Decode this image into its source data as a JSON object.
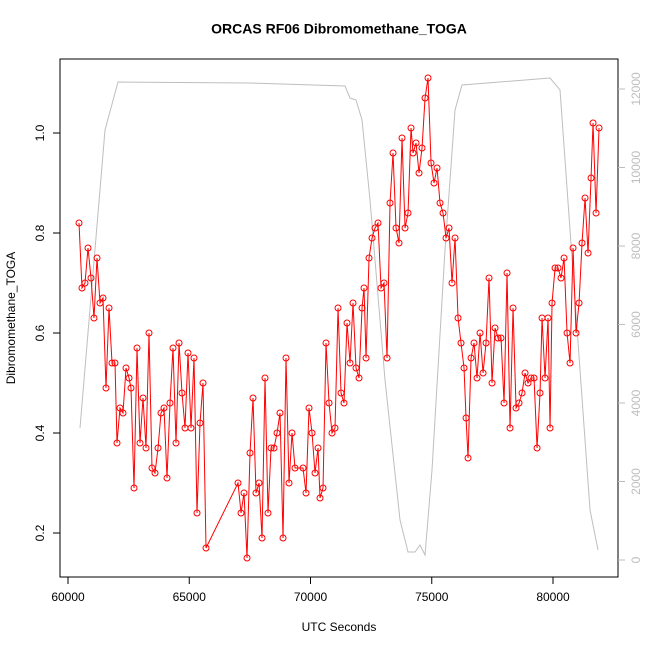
{
  "chart_data": {
    "type": "line",
    "title": "ORCAS RF06 Dibromomethane_TOGA",
    "x_label": "UTC Seconds",
    "y_label": "Dibromomethane_TOGA",
    "xlim": [
      59670,
      82680
    ],
    "xticks": [
      60000,
      65000,
      70000,
      75000,
      80000
    ],
    "ylim": [
      0.112,
      1.148
    ],
    "yticks": [
      0.2,
      0.4,
      0.6,
      0.8,
      {
        "value": 1,
        "label": "1.0"
      }
    ],
    "y2lim": [
      -433,
      12764
    ],
    "y2ticks": [
      0,
      2000,
      4000,
      6000,
      8000,
      10000,
      12000
    ],
    "grid": false,
    "series": [
      {
        "color": "#bebebe",
        "axis": "y2",
        "marker": false,
        "x": [
          60495,
          61526,
          62062,
          67443,
          71423,
          71629,
          71876,
          72124,
          72454,
          73072,
          73691,
          74021,
          74309,
          74515,
          74722,
          75010,
          75546,
          75959,
          76247,
          79876,
          80289,
          80907,
          81526,
          81856
        ],
        "values": [
          3363,
          10955,
          12178,
          12153,
          12076,
          11771,
          11720,
          11210,
          9172,
          4586,
          1019,
          204,
          204,
          382,
          127,
          2293,
          7898,
          11465,
          12102,
          12280,
          11975,
          6624,
          1274,
          255
        ]
      },
      {
        "color": "#ff0000",
        "axis": "y",
        "marker": true,
        "x": [
          60454,
          60577,
          60701,
          60825,
          60949,
          61072,
          61196,
          61320,
          61443,
          61567,
          61691,
          61815,
          61938,
          62021,
          62144,
          62268,
          62392,
          62516,
          62598,
          62722,
          62846,
          62969,
          63093,
          63217,
          63340,
          63464,
          63588,
          63712,
          63835,
          63959,
          64083,
          64206,
          64330,
          64454,
          64578,
          64701,
          64825,
          64949,
          65073,
          65196,
          65320,
          65444,
          65567,
          65691,
          67011,
          67135,
          67258,
          67382,
          67506,
          67629,
          67753,
          67877,
          68001,
          68124,
          68248,
          68372,
          68495,
          68619,
          68743,
          68867,
          68990,
          69114,
          69238,
          69361,
          69691,
          69815,
          69939,
          70063,
          70186,
          70310,
          70392,
          70516,
          70640,
          70764,
          70887,
          71011,
          71135,
          71259,
          71382,
          71506,
          71630,
          71753,
          71877,
          72001,
          72125,
          72207,
          72290,
          72413,
          72537,
          72661,
          72784,
          72908,
          73032,
          73156,
          73279,
          73403,
          73527,
          73650,
          73774,
          73898,
          74022,
          74145,
          74228,
          74352,
          74475,
          74599,
          74723,
          74846,
          74970,
          75094,
          75218,
          75341,
          75465,
          75589,
          75712,
          75836,
          75960,
          76084,
          76207,
          76331,
          76414,
          76496,
          76620,
          76743,
          76867,
          76991,
          77115,
          77238,
          77362,
          77486,
          77609,
          77733,
          77857,
          77981,
          78104,
          78228,
          78352,
          78476,
          78599,
          78723,
          78847,
          78970,
          79094,
          79218,
          79342,
          79465,
          79548,
          79671,
          79795,
          79878,
          79960,
          80084,
          80208,
          80331,
          80455,
          80579,
          80702,
          80826,
          80950,
          81074,
          81197,
          81321,
          81445,
          81568,
          81651,
          81775,
          81898
        ],
        "values": [
          0.82,
          0.69,
          0.7,
          0.77,
          0.71,
          0.63,
          0.75,
          0.66,
          0.67,
          0.49,
          0.65,
          0.54,
          0.54,
          0.38,
          0.45,
          0.44,
          0.53,
          0.51,
          0.49,
          0.29,
          0.57,
          0.38,
          0.47,
          0.37,
          0.6,
          0.33,
          0.32,
          0.37,
          0.44,
          0.45,
          0.31,
          0.46,
          0.57,
          0.38,
          0.58,
          0.48,
          0.41,
          0.56,
          0.41,
          0.55,
          0.24,
          0.42,
          0.5,
          0.17,
          0.3,
          0.24,
          0.28,
          0.15,
          0.36,
          0.47,
          0.28,
          0.3,
          0.19,
          0.51,
          0.24,
          0.37,
          0.37,
          0.4,
          0.44,
          0.19,
          0.55,
          0.3,
          0.4,
          0.33,
          0.33,
          0.28,
          0.45,
          0.4,
          0.32,
          0.37,
          0.27,
          0.29,
          0.58,
          0.46,
          0.4,
          0.41,
          0.65,
          0.48,
          0.46,
          0.62,
          0.54,
          0.66,
          0.53,
          0.51,
          0.65,
          0.69,
          0.55,
          0.75,
          0.79,
          0.81,
          0.82,
          0.69,
          0.7,
          0.55,
          0.86,
          0.96,
          0.81,
          0.78,
          0.99,
          0.81,
          0.84,
          1.01,
          0.96,
          0.98,
          0.92,
          0.97,
          1.07,
          1.11,
          0.94,
          0.9,
          0.93,
          0.86,
          0.84,
          0.79,
          0.81,
          0.7,
          0.79,
          0.63,
          0.58,
          0.53,
          0.43,
          0.35,
          0.55,
          0.58,
          0.51,
          0.6,
          0.52,
          0.58,
          0.71,
          0.5,
          0.61,
          0.59,
          0.59,
          0.46,
          0.72,
          0.41,
          0.65,
          0.45,
          0.46,
          0.48,
          0.52,
          0.5,
          0.51,
          0.51,
          0.37,
          0.48,
          0.63,
          0.51,
          0.63,
          0.41,
          0.66,
          0.73,
          0.73,
          0.71,
          0.75,
          0.6,
          0.54,
          0.77,
          0.6,
          0.66,
          0.78,
          0.87,
          0.76,
          0.91,
          1.02,
          0.84,
          1.01
        ]
      }
    ]
  }
}
